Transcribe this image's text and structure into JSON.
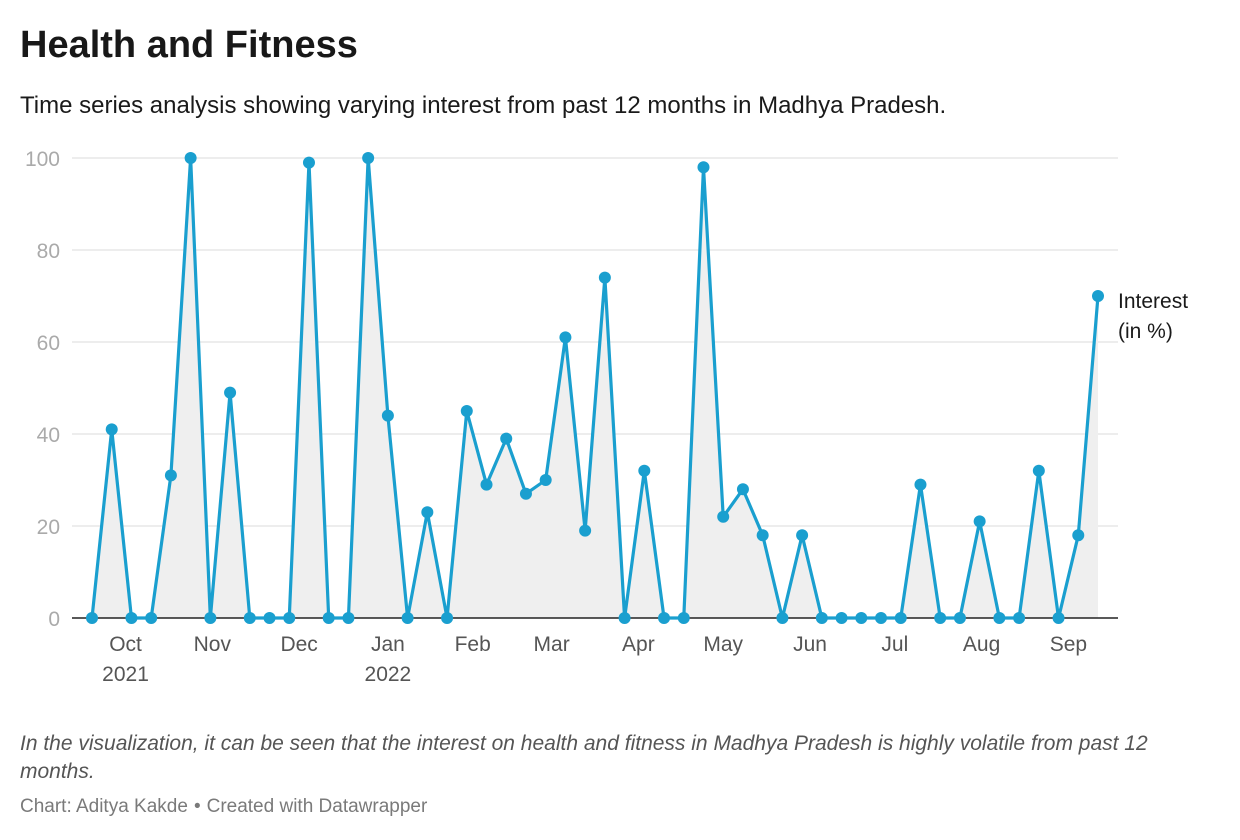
{
  "title": "Health and Fitness",
  "subtitle": "Time series analysis showing varying interest from past 12 months in Madhya Pradesh.",
  "note": "In the visualization, it can be seen that the interest on health and fitness in Madhya Pradesh is highly volatile from past 12 months.",
  "byline": {
    "chart_by": "Chart: Aditya Kakde",
    "separator": "•",
    "created_with": "Created with Datawrapper"
  },
  "colors": {
    "line": "#1a9fcf",
    "area": "#efefef",
    "grid": "#e2e2e2",
    "axis": "#222222",
    "tick_text": "#aaaaaa",
    "x_text": "#555555"
  },
  "chart_data": {
    "type": "line",
    "title": "Health and Fitness",
    "series": [
      {
        "name": "Interest (in %)",
        "label_lines": [
          "Interest",
          "(in %)"
        ],
        "values": [
          0,
          41,
          0,
          0,
          31,
          100,
          0,
          49,
          0,
          0,
          0,
          99,
          0,
          0,
          100,
          44,
          0,
          23,
          0,
          45,
          29,
          39,
          27,
          30,
          61,
          19,
          74,
          0,
          32,
          0,
          0,
          98,
          22,
          28,
          18,
          0,
          18,
          0,
          0,
          0,
          0,
          0,
          29,
          0,
          0,
          21,
          0,
          0,
          32,
          0,
          18,
          70
        ]
      }
    ],
    "ylim": [
      0,
      100
    ],
    "y_ticks": [
      0,
      20,
      40,
      60,
      80,
      100
    ],
    "x_ticks": [
      {
        "label": "Oct",
        "sub": "2021",
        "index": 1.7
      },
      {
        "label": "Nov",
        "sub": "",
        "index": 6.1
      },
      {
        "label": "Dec",
        "sub": "",
        "index": 10.5
      },
      {
        "label": "Jan",
        "sub": "2022",
        "index": 15.0
      },
      {
        "label": "Feb",
        "sub": "",
        "index": 19.3
      },
      {
        "label": "Mar",
        "sub": "",
        "index": 23.3
      },
      {
        "label": "Apr",
        "sub": "",
        "index": 27.7
      },
      {
        "label": "May",
        "sub": "",
        "index": 32.0
      },
      {
        "label": "Jun",
        "sub": "",
        "index": 36.4
      },
      {
        "label": "Jul",
        "sub": "",
        "index": 40.7
      },
      {
        "label": "Aug",
        "sub": "",
        "index": 45.1
      },
      {
        "label": "Sep",
        "sub": "",
        "index": 49.5
      }
    ],
    "grid": true,
    "area_fill": true,
    "legend": "inline label at end of line"
  }
}
